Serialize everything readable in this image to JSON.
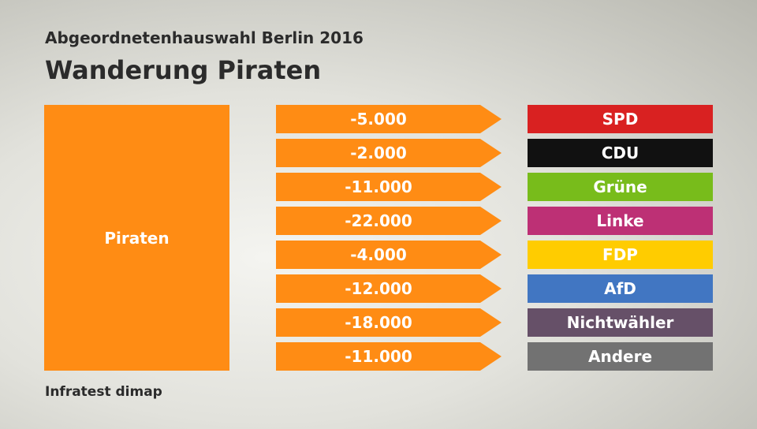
{
  "subtitle": "Abgeordnetenhauswahl Berlin 2016",
  "title": "Wanderung Piraten",
  "source": "Infratest dimap",
  "chart_data": {
    "type": "table",
    "from": "Piraten",
    "from_color": "#ff8c14",
    "flows": [
      {
        "value": "-5.000",
        "party": "SPD",
        "color": "#d92121"
      },
      {
        "value": "-2.000",
        "party": "CDU",
        "color": "#111111"
      },
      {
        "value": "-11.000",
        "party": "Grüne",
        "color": "#78bc1b"
      },
      {
        "value": "-22.000",
        "party": "Linke",
        "color": "#bd3075"
      },
      {
        "value": "-4.000",
        "party": "FDP",
        "color": "#ffcc00"
      },
      {
        "value": "-12.000",
        "party": "AfD",
        "color": "#4176c2"
      },
      {
        "value": "-18.000",
        "party": "Nichtwähler",
        "color": "#665068"
      },
      {
        "value": "-11.000",
        "party": "Andere",
        "color": "#727272"
      }
    ]
  }
}
